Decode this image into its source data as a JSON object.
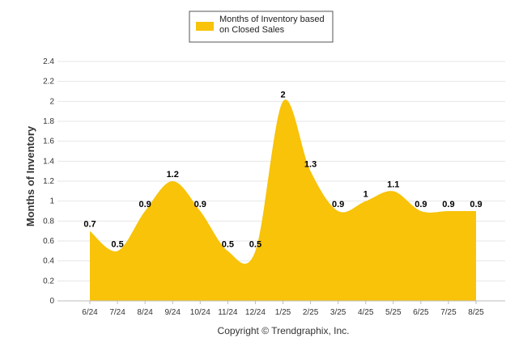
{
  "chart_data": {
    "type": "area",
    "legend": {
      "label_line1": "Months of Inventory based",
      "label_line2": "on Closed Sales",
      "placement": "top-center"
    },
    "ylabel": "Months of Inventory",
    "xlabel": "",
    "ylim": [
      0,
      2.4
    ],
    "yticks": [
      "0",
      "0.2",
      "0.4",
      "0.6",
      "0.8",
      "1",
      "1.2",
      "1.4",
      "1.6",
      "1.8",
      "2",
      "2.2",
      "2.4"
    ],
    "categories": [
      "6/24",
      "7/24",
      "8/24",
      "9/24",
      "10/24",
      "11/24",
      "12/24",
      "1/25",
      "2/25",
      "3/25",
      "4/25",
      "5/25",
      "6/25",
      "7/25",
      "8/25"
    ],
    "series": [
      {
        "values": [
          0.7,
          0.5,
          0.9,
          1.2,
          0.9,
          0.5,
          0.5,
          2,
          1.3,
          0.9,
          1,
          1.1,
          0.9,
          0.9,
          0.9
        ],
        "data_labels": [
          "0.7",
          "0.5",
          "0.9",
          "1.2",
          "0.9",
          "0.5",
          "0.5",
          "2",
          "1.3",
          "0.9",
          "1",
          "1.1",
          "0.9",
          "0.9",
          "0.9"
        ],
        "color": "#f8c308"
      }
    ],
    "grid": true,
    "credit": "Copyright © Trendgraphix, Inc."
  }
}
